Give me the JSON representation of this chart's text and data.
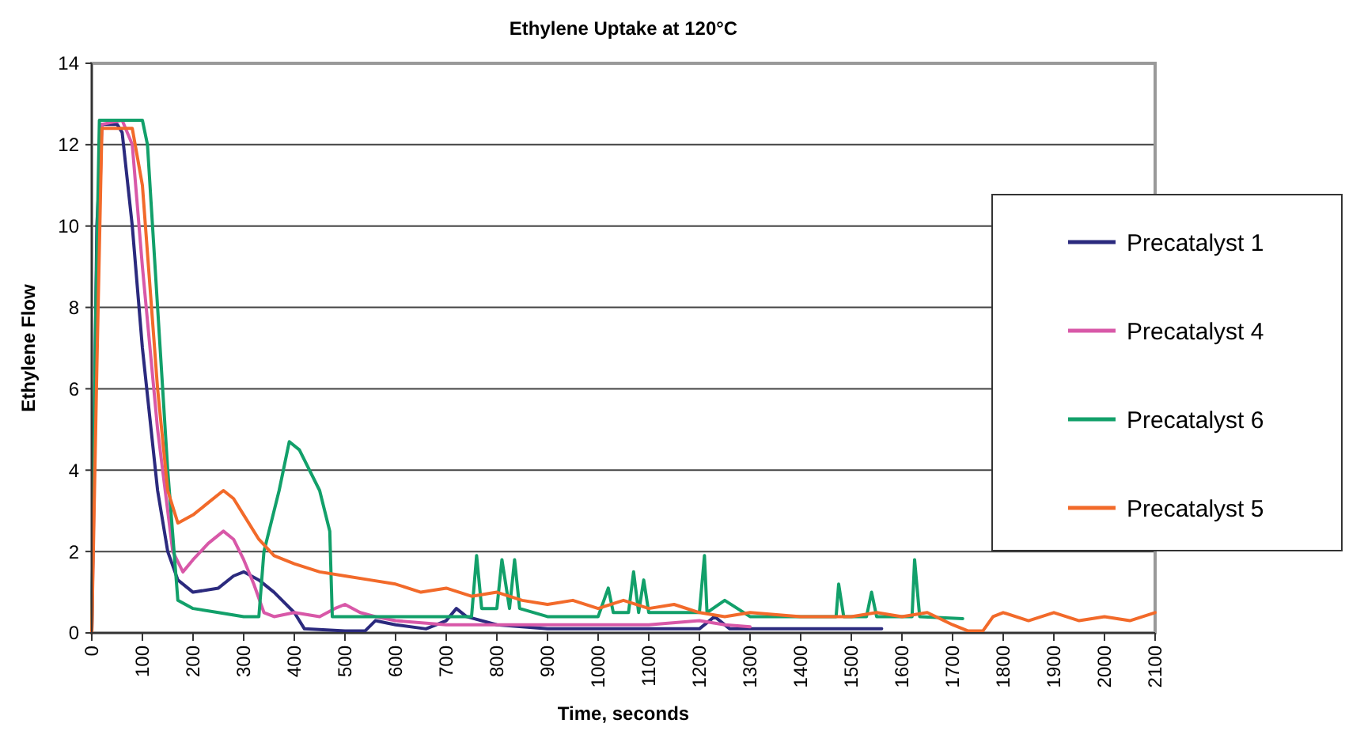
{
  "chart_data": {
    "type": "line",
    "title": "Ethylene Uptake at 120°C",
    "xlabel": "Time, seconds",
    "ylabel": "Ethylene Flow",
    "xlim": [
      0,
      2100
    ],
    "xticks": [
      0,
      100,
      200,
      300,
      400,
      500,
      600,
      700,
      800,
      900,
      1000,
      1100,
      1200,
      1300,
      1400,
      1500,
      1600,
      1700,
      1800,
      1900,
      2000,
      2100
    ],
    "ylim": [
      0,
      14
    ],
    "yticks": [
      0,
      2,
      4,
      6,
      8,
      10,
      12,
      14
    ],
    "grid": "y",
    "legend": "right",
    "marker": "none",
    "line_style": "solid",
    "series": [
      {
        "name": "Precatalyst 1",
        "color": "#2b2a7e",
        "x": [
          0,
          10,
          20,
          50,
          60,
          80,
          100,
          130,
          150,
          170,
          200,
          250,
          280,
          300,
          330,
          360,
          400,
          420,
          500,
          540,
          560,
          600,
          660,
          700,
          720,
          740,
          800,
          900,
          1000,
          1100,
          1200,
          1230,
          1260,
          1400,
          1560
        ],
        "values": [
          0,
          10,
          12.5,
          12.5,
          12.3,
          10,
          7,
          3.5,
          2,
          1.3,
          1,
          1.1,
          1.4,
          1.5,
          1.3,
          1,
          0.5,
          0.1,
          0.05,
          0.05,
          0.3,
          0.2,
          0.1,
          0.3,
          0.6,
          0.4,
          0.2,
          0.1,
          0.1,
          0.1,
          0.1,
          0.4,
          0.1,
          0.1,
          0.1
        ]
      },
      {
        "name": "Precatalyst 4",
        "color": "#d858a8",
        "x": [
          0,
          10,
          20,
          60,
          80,
          100,
          130,
          160,
          180,
          200,
          230,
          260,
          280,
          300,
          320,
          340,
          360,
          400,
          450,
          480,
          500,
          530,
          560,
          600,
          700,
          800,
          900,
          1000,
          1100,
          1200,
          1250,
          1300
        ],
        "values": [
          0,
          8,
          12.5,
          12.6,
          12,
          9,
          5,
          2,
          1.5,
          1.8,
          2.2,
          2.5,
          2.3,
          1.8,
          1.2,
          0.5,
          0.4,
          0.5,
          0.4,
          0.6,
          0.7,
          0.5,
          0.4,
          0.3,
          0.2,
          0.2,
          0.2,
          0.2,
          0.2,
          0.3,
          0.2,
          0.15
        ]
      },
      {
        "name": "Precatalyst 6",
        "color": "#12a06a",
        "x": [
          0,
          8,
          15,
          100,
          110,
          130,
          150,
          170,
          200,
          250,
          300,
          330,
          340,
          370,
          390,
          410,
          450,
          470,
          475,
          550,
          700,
          750,
          760,
          770,
          800,
          810,
          825,
          835,
          845,
          900,
          1000,
          1020,
          1030,
          1060,
          1070,
          1080,
          1090,
          1100,
          1200,
          1210,
          1215,
          1250,
          1300,
          1400,
          1470,
          1475,
          1485,
          1530,
          1540,
          1550,
          1620,
          1625,
          1635,
          1720
        ],
        "values": [
          0,
          8,
          12.6,
          12.6,
          12,
          8,
          4,
          0.8,
          0.6,
          0.5,
          0.4,
          0.4,
          2,
          3.5,
          4.7,
          4.5,
          3.5,
          2.5,
          0.4,
          0.4,
          0.4,
          0.4,
          1.9,
          0.6,
          0.6,
          1.8,
          0.6,
          1.8,
          0.6,
          0.4,
          0.4,
          1.1,
          0.5,
          0.5,
          1.5,
          0.5,
          1.3,
          0.5,
          0.5,
          1.9,
          0.5,
          0.8,
          0.4,
          0.4,
          0.4,
          1.2,
          0.4,
          0.4,
          1,
          0.4,
          0.4,
          1.8,
          0.4,
          0.35
        ]
      },
      {
        "name": "Precatalyst 5",
        "color": "#f26a2a",
        "x": [
          0,
          10,
          20,
          80,
          100,
          130,
          150,
          170,
          200,
          230,
          260,
          280,
          300,
          330,
          360,
          400,
          450,
          500,
          550,
          600,
          650,
          700,
          750,
          800,
          850,
          900,
          950,
          1000,
          1050,
          1100,
          1150,
          1200,
          1250,
          1300,
          1400,
          1500,
          1550,
          1600,
          1650,
          1700,
          1730,
          1760,
          1780,
          1800,
          1850,
          1900,
          1950,
          2000,
          2050,
          2100
        ],
        "values": [
          0,
          6.5,
          12.4,
          12.4,
          11,
          6,
          3.5,
          2.7,
          2.9,
          3.2,
          3.5,
          3.3,
          2.9,
          2.3,
          1.9,
          1.7,
          1.5,
          1.4,
          1.3,
          1.2,
          1,
          1.1,
          0.9,
          1,
          0.8,
          0.7,
          0.8,
          0.6,
          0.8,
          0.6,
          0.7,
          0.5,
          0.4,
          0.5,
          0.4,
          0.4,
          0.5,
          0.4,
          0.5,
          0.2,
          0.05,
          0.05,
          0.4,
          0.5,
          0.3,
          0.5,
          0.3,
          0.4,
          0.3,
          0.5
        ]
      }
    ]
  }
}
